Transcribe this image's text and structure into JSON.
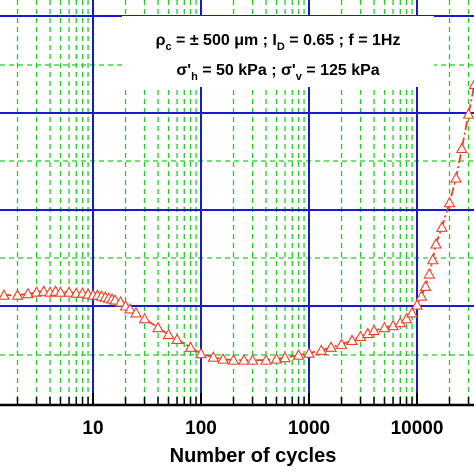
{
  "chart_data": {
    "type": "scatter",
    "x_scale": "log",
    "xlabel": "Number of cycles",
    "ylabel": "",
    "x_ticks": [
      "10",
      "100",
      "1000",
      "10000"
    ],
    "grid": true,
    "annotation": {
      "line1": {
        "p1": "ρ",
        "s1": "c",
        "p2": " = ± 500 μm ;  I",
        "s2": "D",
        "p3": " = 0.65  ; f = 1Hz"
      },
      "line2": {
        "p1": "σ'",
        "s1": "h",
        "p2": " = 50 kPa ; σ'",
        "s2": "v",
        "p3": " = 125 kPa"
      }
    },
    "series": [
      {
        "marker": "triangle-open",
        "line": "dash-dot",
        "color": "#e8402a",
        "x": [
          1,
          1.5,
          2,
          2.5,
          3,
          3.5,
          4,
          4.5,
          5,
          6,
          7,
          8,
          9,
          10,
          11,
          12,
          13,
          14,
          15,
          16,
          18,
          20,
          22,
          25,
          30,
          40,
          50,
          60,
          80,
          100,
          130,
          160,
          200,
          250,
          300,
          400,
          500,
          600,
          800,
          1000,
          1300,
          1600,
          2000,
          2500,
          3000,
          3500,
          4000,
          5000,
          6000,
          7000,
          8000,
          9000,
          10000,
          11000,
          12000,
          13000,
          14000,
          15000,
          17000,
          20000,
          23000,
          26000,
          30000,
          34000
        ],
        "y": [
          1.022,
          1.022,
          1.022,
          1.025,
          1.028,
          1.03,
          1.028,
          1.03,
          1.028,
          1.028,
          1.026,
          1.026,
          1.024,
          1.022,
          1.022,
          1.02,
          1.018,
          1.016,
          1.014,
          1.012,
          1.008,
          1.0,
          0.994,
          0.986,
          0.974,
          0.956,
          0.942,
          0.932,
          0.916,
          0.903,
          0.896,
          0.892,
          0.89,
          0.89,
          0.89,
          0.89,
          0.892,
          0.895,
          0.9,
          0.904,
          0.91,
          0.916,
          0.922,
          0.93,
          0.938,
          0.944,
          0.95,
          0.956,
          0.96,
          0.966,
          0.974,
          0.986,
          1.002,
          1.02,
          1.04,
          1.065,
          1.094,
          1.126,
          1.16,
          1.21,
          1.26,
          1.32,
          1.39,
          1.45
        ]
      }
    ]
  }
}
